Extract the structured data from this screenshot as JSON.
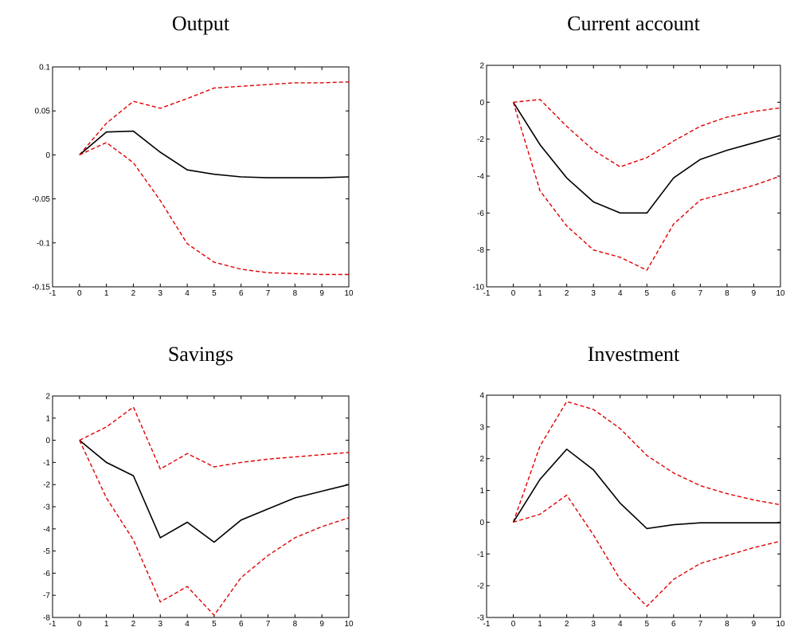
{
  "colors": {
    "mean": "#000000",
    "bands": "#e00000"
  },
  "chart_data": [
    {
      "type": "line",
      "title": "Output",
      "xlabel": "",
      "ylabel": "",
      "xlim": [
        -1,
        10
      ],
      "ylim": [
        -0.15,
        0.1
      ],
      "xticks": [
        -1,
        0,
        1,
        2,
        3,
        4,
        5,
        6,
        7,
        8,
        9,
        10
      ],
      "yticks": [
        -0.15,
        -0.1,
        -0.05,
        0,
        0.05,
        0.1
      ],
      "ytick_labels": [
        "-0.15",
        "-0.1",
        "-0.05",
        "0",
        "0.05",
        "0.1"
      ],
      "grid": false,
      "x": [
        0,
        1,
        2,
        3,
        4,
        5,
        6,
        7,
        8,
        9,
        10
      ],
      "series": [
        {
          "role": "upper",
          "style": "red-dashed",
          "values": [
            0,
            0.036,
            0.061,
            0.053,
            0.064,
            0.076,
            0.078,
            0.08,
            0.082,
            0.082,
            0.083
          ]
        },
        {
          "role": "mean",
          "style": "black-solid",
          "values": [
            0,
            0.026,
            0.027,
            0.003,
            -0.017,
            -0.022,
            -0.025,
            -0.026,
            -0.026,
            -0.026,
            -0.025
          ]
        },
        {
          "role": "lower",
          "style": "red-dashed",
          "values": [
            0,
            0.014,
            -0.009,
            -0.052,
            -0.101,
            -0.122,
            -0.13,
            -0.134,
            -0.135,
            -0.136,
            -0.136
          ]
        }
      ]
    },
    {
      "type": "line",
      "title": "Current account",
      "xlabel": "",
      "ylabel": "",
      "xlim": [
        -1,
        10
      ],
      "ylim": [
        -10,
        2
      ],
      "xticks": [
        -1,
        0,
        1,
        2,
        3,
        4,
        5,
        6,
        7,
        8,
        9,
        10
      ],
      "yticks": [
        -10,
        -8,
        -6,
        -4,
        -2,
        0,
        2
      ],
      "ytick_labels": [
        "-10",
        "-8",
        "-6",
        "-4",
        "-2",
        "0",
        "2"
      ],
      "grid": false,
      "x": [
        0,
        1,
        2,
        3,
        4,
        5,
        6,
        7,
        8,
        9,
        10
      ],
      "series": [
        {
          "role": "upper",
          "style": "red-dashed",
          "values": [
            0,
            0.15,
            -1.3,
            -2.6,
            -3.5,
            -3.0,
            -2.1,
            -1.3,
            -0.8,
            -0.5,
            -0.3
          ]
        },
        {
          "role": "mean",
          "style": "black-solid",
          "values": [
            0,
            -2.3,
            -4.1,
            -5.4,
            -6.0,
            -6.0,
            -4.1,
            -3.1,
            -2.6,
            -2.2,
            -1.8
          ]
        },
        {
          "role": "lower",
          "style": "red-dashed",
          "values": [
            0,
            -4.8,
            -6.7,
            -8.0,
            -8.4,
            -9.1,
            -6.6,
            -5.3,
            -4.9,
            -4.5,
            -4.0
          ]
        }
      ]
    },
    {
      "type": "line",
      "title": "Savings",
      "xlabel": "",
      "ylabel": "",
      "xlim": [
        -1,
        10
      ],
      "ylim": [
        -8,
        2
      ],
      "xticks": [
        -1,
        0,
        1,
        2,
        3,
        4,
        5,
        6,
        7,
        8,
        9,
        10
      ],
      "yticks": [
        -8,
        -7,
        -6,
        -5,
        -4,
        -3,
        -2,
        -1,
        0,
        1,
        2
      ],
      "ytick_labels": [
        "-8",
        "-7",
        "-6",
        "-5",
        "-4",
        "-3",
        "-2",
        "-1",
        "0",
        "1",
        "2"
      ],
      "grid": false,
      "x": [
        0,
        1,
        2,
        3,
        4,
        5,
        6,
        7,
        8,
        9,
        10
      ],
      "series": [
        {
          "role": "upper",
          "style": "red-dashed",
          "values": [
            0,
            0.6,
            1.5,
            -1.3,
            -0.6,
            -1.2,
            -1.0,
            -0.85,
            -0.75,
            -0.65,
            -0.55
          ]
        },
        {
          "role": "mean",
          "style": "black-solid",
          "values": [
            0,
            -1.0,
            -1.6,
            -4.4,
            -3.7,
            -4.6,
            -3.6,
            -3.1,
            -2.6,
            -2.3,
            -2.0
          ]
        },
        {
          "role": "lower",
          "style": "red-dashed",
          "values": [
            0,
            -2.6,
            -4.5,
            -7.3,
            -6.6,
            -7.9,
            -6.2,
            -5.2,
            -4.4,
            -3.9,
            -3.5
          ]
        }
      ]
    },
    {
      "type": "line",
      "title": "Investment",
      "xlabel": "",
      "ylabel": "",
      "xlim": [
        -1,
        10
      ],
      "ylim": [
        -3,
        4
      ],
      "xticks": [
        -1,
        0,
        1,
        2,
        3,
        4,
        5,
        6,
        7,
        8,
        9,
        10
      ],
      "yticks": [
        -3,
        -2,
        -1,
        0,
        1,
        2,
        3,
        4
      ],
      "ytick_labels": [
        "-3",
        "-2",
        "-1",
        "0",
        "1",
        "2",
        "3",
        "4"
      ],
      "grid": false,
      "x": [
        0,
        1,
        2,
        3,
        4,
        5,
        6,
        7,
        8,
        9,
        10
      ],
      "series": [
        {
          "role": "upper",
          "style": "red-dashed",
          "values": [
            0,
            2.4,
            3.8,
            3.55,
            2.95,
            2.1,
            1.55,
            1.15,
            0.9,
            0.7,
            0.55
          ]
        },
        {
          "role": "mean",
          "style": "black-solid",
          "values": [
            0,
            1.35,
            2.3,
            1.65,
            0.6,
            -0.2,
            -0.08,
            -0.02,
            -0.02,
            -0.02,
            -0.02
          ]
        },
        {
          "role": "lower",
          "style": "red-dashed",
          "values": [
            0,
            0.25,
            0.85,
            -0.4,
            -1.8,
            -2.65,
            -1.8,
            -1.3,
            -1.05,
            -0.8,
            -0.6
          ]
        }
      ]
    }
  ]
}
